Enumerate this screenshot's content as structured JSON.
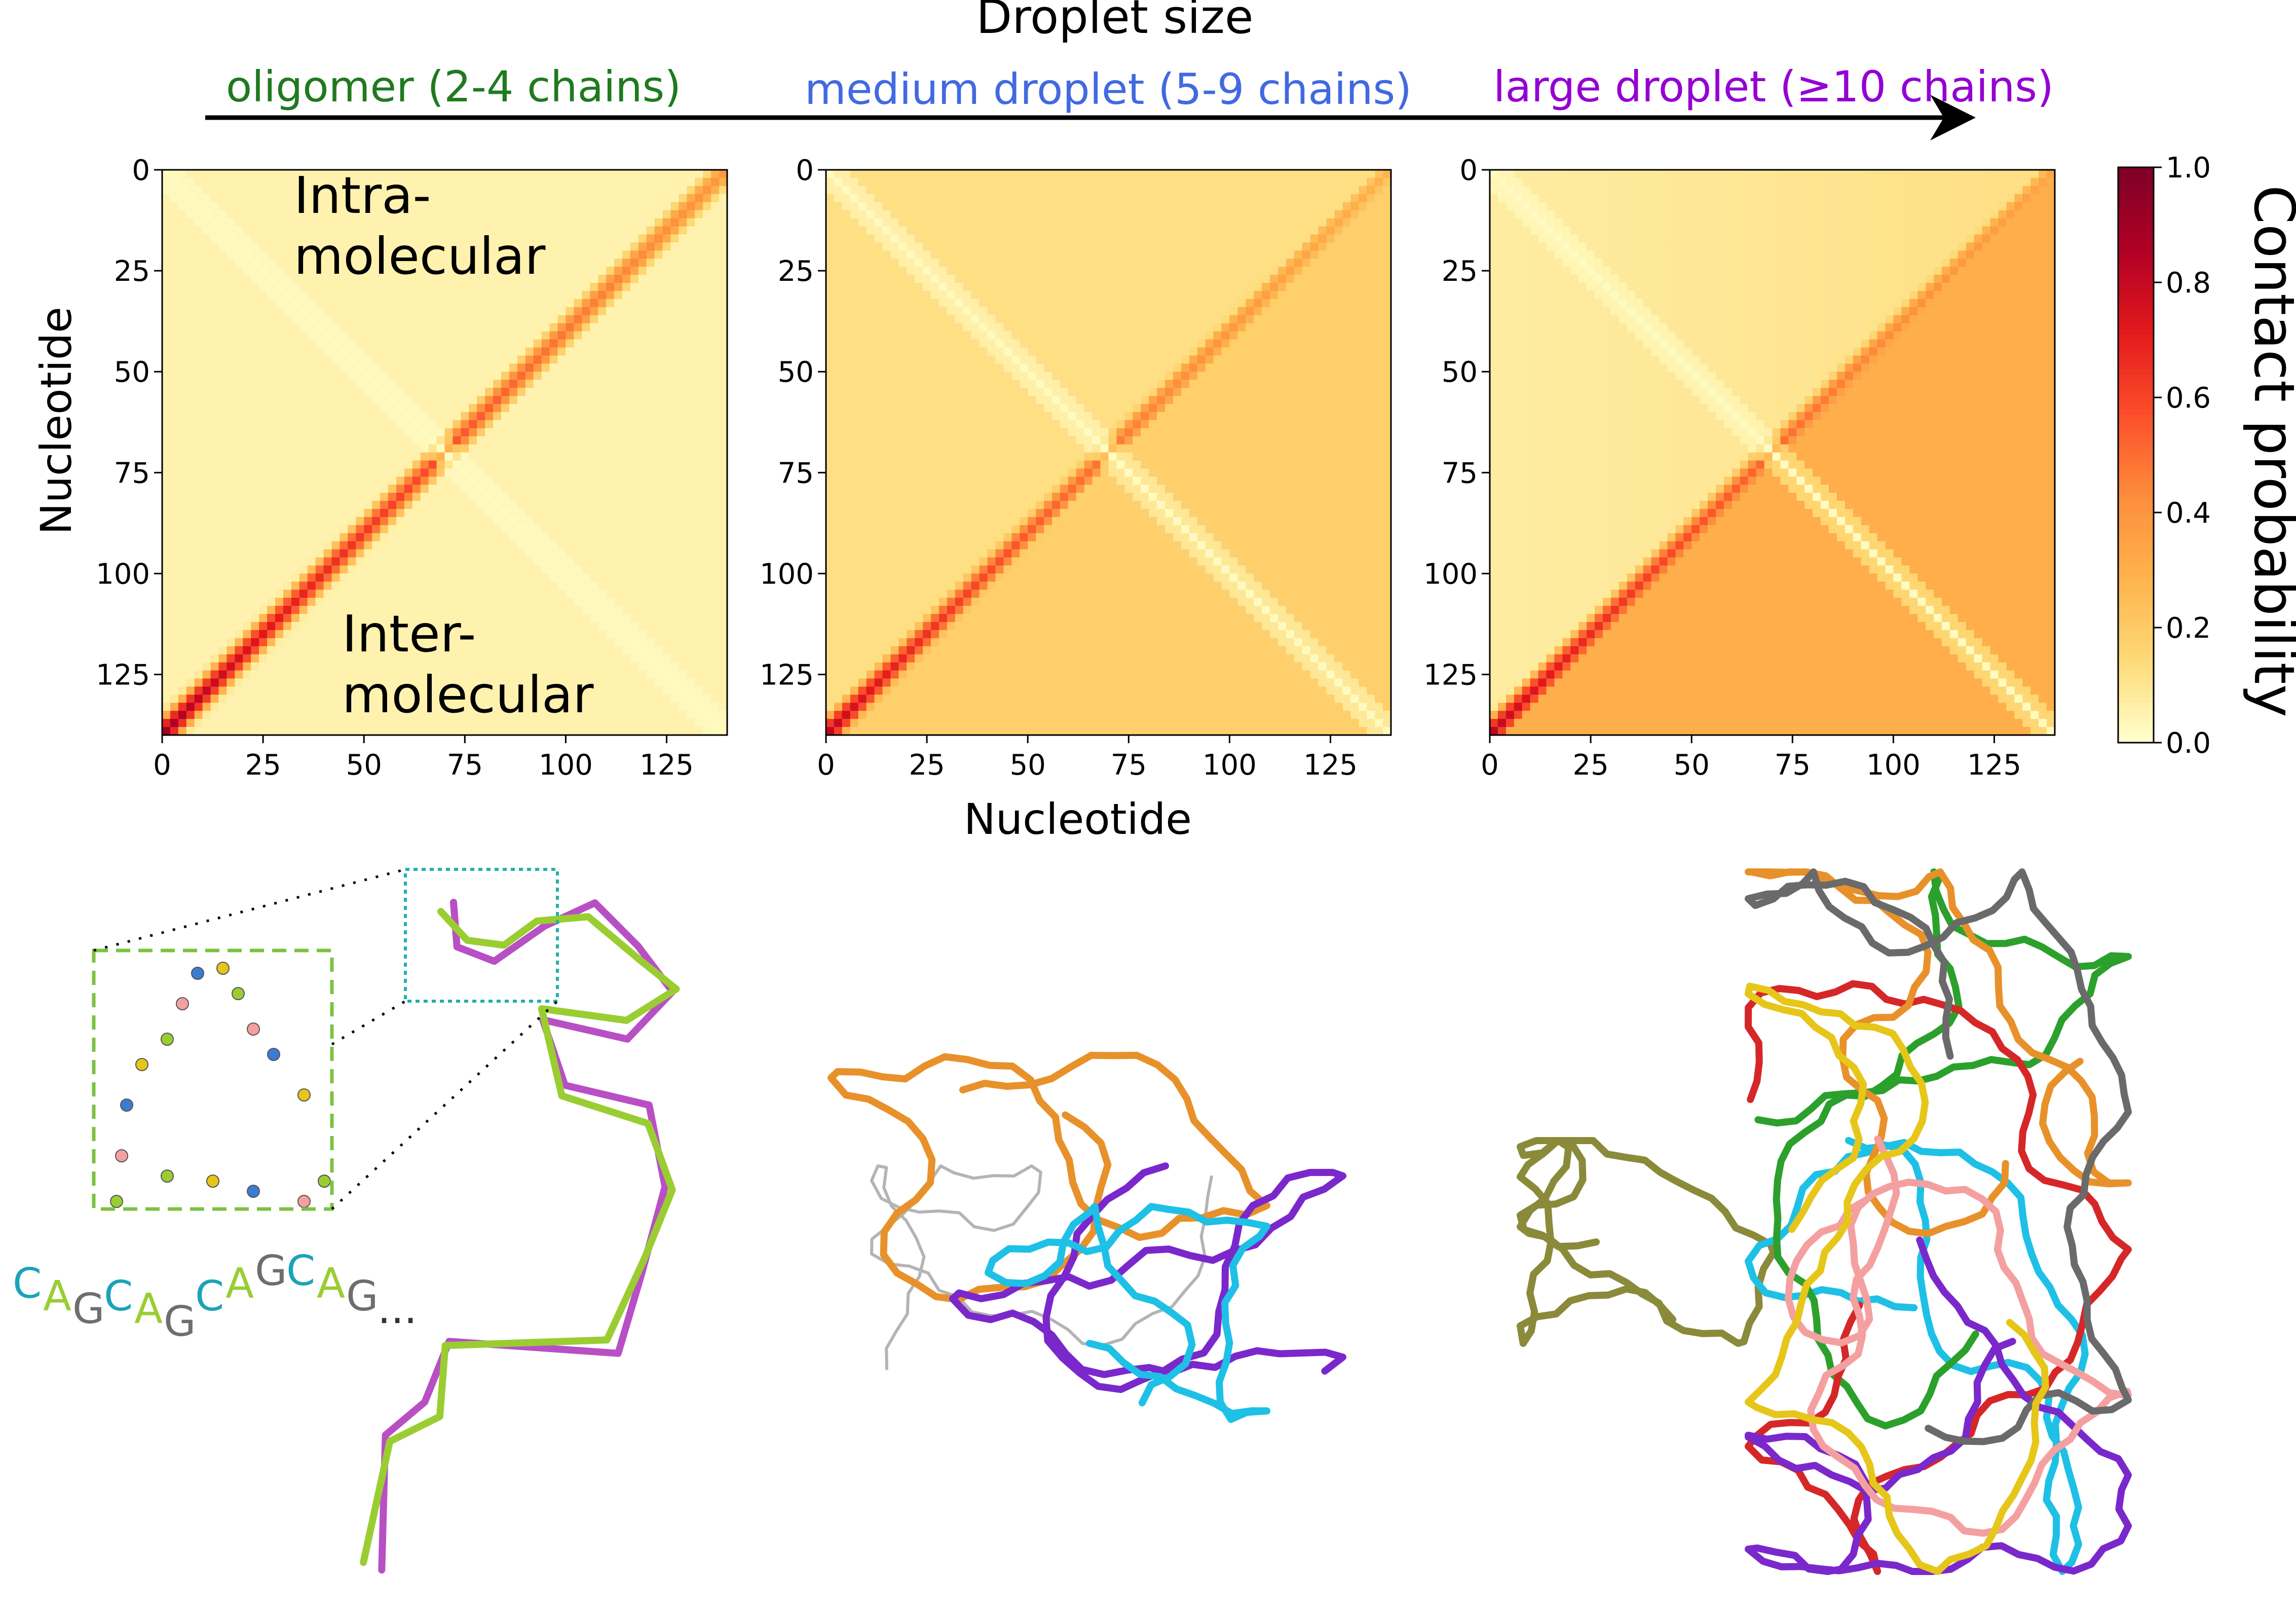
{
  "figure": {
    "size_axis_title": "Droplet size",
    "stages": [
      {
        "label": "oligomer (2-4 chains)",
        "color": "#1f7a1f"
      },
      {
        "label": "medium droplet (5-9 chains)",
        "color": "#4169e1"
      },
      {
        "label": "large droplet (≥10 chains)",
        "color": "#9400d3"
      }
    ],
    "ylabel": "Nucleotide",
    "xlabel": "Nucleotide",
    "colorbar": {
      "label": "Contact probability",
      "ticks": [
        "0.0",
        "0.2",
        "0.4",
        "0.6",
        "0.8",
        "1.0"
      ],
      "range": [
        0,
        1
      ],
      "colormap": "YlOrRd",
      "colormap_colors": [
        "#ffffcc",
        "#fed976",
        "#feb24c",
        "#fd8d3c",
        "#fc4e2a",
        "#e31a1c",
        "#b10026",
        "#800026"
      ]
    },
    "annotations": {
      "intra": [
        "Intra-",
        "molecular"
      ],
      "inter": [
        "Inter-",
        "molecular"
      ]
    },
    "sequence": [
      "C",
      "A",
      "G",
      "C",
      "A",
      "G",
      "C",
      "A",
      "G",
      "C",
      "A",
      "G",
      "..."
    ],
    "sequence_colors": {
      "C": "#1aa3b8",
      "A": "#9acd32",
      "G": "#6e6e6e",
      ".": "#333333"
    }
  },
  "chart_data": [
    {
      "type": "heatmap",
      "title": "oligomer (2-4 chains)",
      "xlabel": "Nucleotide",
      "ylabel": "Nucleotide",
      "xlim": [
        0,
        140
      ],
      "ylim": [
        140,
        0
      ],
      "x_ticks": [
        0,
        25,
        50,
        75,
        100,
        125
      ],
      "y_ticks": [
        0,
        25,
        50,
        75,
        100,
        125
      ],
      "background_level": 0.05,
      "intermolecular_antidiagonal_peak": [
        0.92,
        0.38
      ],
      "intramolecular_diagonal_contact": 0.02
    },
    {
      "type": "heatmap",
      "title": "medium droplet (5-9 chains)",
      "xlabel": "Nucleotide",
      "ylabel": "Nucleotide",
      "xlim": [
        0,
        140
      ],
      "ylim": [
        140,
        0
      ],
      "x_ticks": [
        0,
        25,
        50,
        75,
        100,
        125
      ],
      "y_ticks": [
        0,
        25,
        50,
        75,
        100,
        125
      ],
      "background_level": 0.12,
      "intermolecular_antidiagonal_peak": [
        0.85,
        0.28
      ],
      "intramolecular_diagonal_contact": 0.02
    },
    {
      "type": "heatmap",
      "title": "large droplet (≥10 chains)",
      "xlabel": "Nucleotide",
      "ylabel": "Nucleotide",
      "xlim": [
        0,
        140
      ],
      "ylim": [
        140,
        0
      ],
      "x_ticks": [
        0,
        25,
        50,
        75,
        100,
        125
      ],
      "y_ticks": [
        0,
        25,
        50,
        75,
        100,
        125
      ],
      "background_level": 0.3,
      "intermolecular_antidiagonal_peak": [
        0.85,
        0.33
      ],
      "intramolecular_diagonal_contact": 0.02
    }
  ],
  "structures": [
    {
      "name": "oligomer-structure",
      "chain_colors": [
        "#9acd32",
        "#b84fc4"
      ]
    },
    {
      "name": "medium-droplet-structure",
      "chain_colors": [
        "#e8912a",
        "#7a28cb",
        "#1ec0e6",
        "#b4b4b4"
      ]
    },
    {
      "name": "large-droplet-structure",
      "chain_colors": [
        "#8a8a3a",
        "#1ec0e6",
        "#2ca02c",
        "#d62728",
        "#e8912a",
        "#7a28cb",
        "#f4a0a0",
        "#6a6a6a",
        "#e6c619"
      ]
    }
  ]
}
